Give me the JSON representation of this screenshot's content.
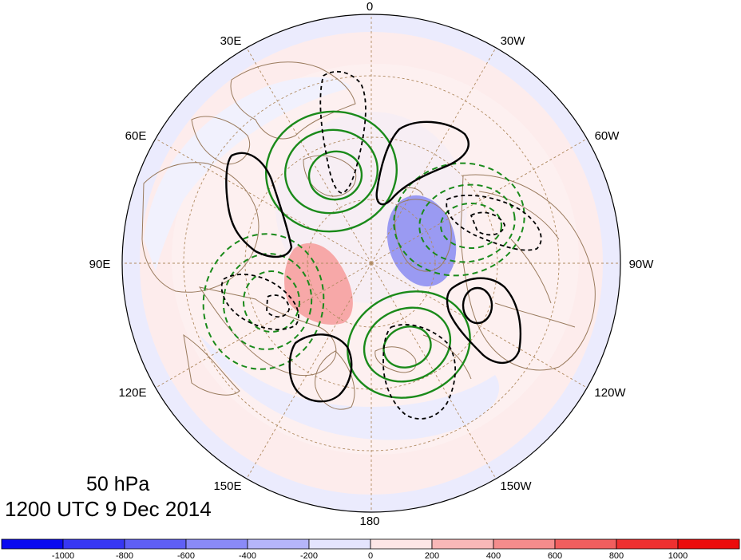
{
  "title": {
    "level": "50 hPa",
    "time": "1200 UTC 9 Dec 2014"
  },
  "longitude_labels": [
    "0",
    "30W",
    "60W",
    "90W",
    "120W",
    "150W",
    "180",
    "150E",
    "120E",
    "90E",
    "60E",
    "30E"
  ],
  "colorbar": {
    "labels": [
      "-1000",
      "-800",
      "-600",
      "-400",
      "-200",
      "0",
      "200",
      "400",
      "600",
      "800",
      "1000"
    ],
    "colors": [
      "#0a0af0",
      "#3737f3",
      "#5f5ff5",
      "#8a8af7",
      "#b5b5fa",
      "#e4e4fd",
      "#fde6e6",
      "#f9b8b8",
      "#f58c8c",
      "#f15e5e",
      "#ee3030",
      "#ec0c0c"
    ]
  },
  "colors": {
    "positive_contour": "#1a8a1a",
    "negative_contour": "#1a8a1a",
    "black_contour": "#000000",
    "coastline": "#9a7b5e",
    "graticule": "#b08a60",
    "shade_red": "#f7a8a8",
    "shade_blue": "#9a9af2"
  }
}
